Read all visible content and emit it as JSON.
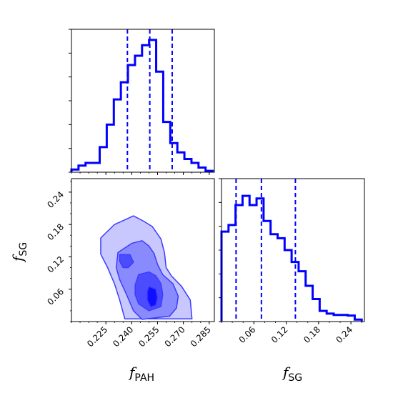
{
  "colors": {
    "main": "#0000ff",
    "contour_fill_levels": [
      "#c8c8ff",
      "#8a8aff",
      "#4c4cff",
      "#0f0fff"
    ],
    "contour_line": "#3b3bff",
    "axes": "#000000",
    "background": "#ffffff"
  },
  "chart_data": [
    {
      "panel": "fPAH-marginal",
      "type": "histogram",
      "xlim": [
        0.205,
        0.288
      ],
      "bins": {
        "start": 0.205,
        "width": 0.0041,
        "counts": [
          0.02,
          0.05,
          0.07,
          0.07,
          0.19,
          0.36,
          0.55,
          0.68,
          0.81,
          0.88,
          0.96,
          1.0,
          0.76,
          0.38,
          0.22,
          0.15,
          0.1,
          0.07,
          0.035,
          0.01
        ]
      },
      "ylim": [
        0,
        1.08
      ],
      "quantile_lines": [
        0.2375,
        0.2505,
        0.2635
      ],
      "yticks_labels": false
    },
    {
      "panel": "fSG-marginal",
      "type": "histogram",
      "xlim": [
        0.0,
        0.265
      ],
      "bins": {
        "start": 0.0,
        "width": 0.013,
        "counts": [
          0.68,
          0.73,
          0.88,
          0.95,
          0.88,
          0.93,
          0.76,
          0.66,
          0.63,
          0.54,
          0.45,
          0.38,
          0.27,
          0.17,
          0.08,
          0.06,
          0.05,
          0.05,
          0.045,
          0.015
        ]
      },
      "ylim": [
        0,
        1.08
      ],
      "quantile_lines": [
        0.027,
        0.074,
        0.137
      ],
      "yticks_labels": false
    },
    {
      "panel": "fPAH-vs-fSG",
      "type": "contour",
      "xlim": [
        0.205,
        0.288
      ],
      "ylim": [
        0.0,
        0.265
      ],
      "levels": [
        [
          [
            0.237,
            0.19
          ],
          [
            0.241,
            0.196
          ],
          [
            0.247,
            0.186
          ],
          [
            0.252,
            0.176
          ],
          [
            0.257,
            0.153
          ],
          [
            0.259,
            0.128
          ],
          [
            0.26,
            0.1
          ],
          [
            0.263,
            0.085
          ],
          [
            0.269,
            0.065
          ],
          [
            0.274,
            0.04
          ],
          [
            0.275,
            0.005
          ],
          [
            0.236,
            0.005
          ],
          [
            0.233,
            0.04
          ],
          [
            0.23,
            0.07
          ],
          [
            0.226,
            0.1
          ],
          [
            0.222,
            0.125
          ],
          [
            0.222,
            0.155
          ],
          [
            0.23,
            0.18
          ]
        ],
        [
          [
            0.24,
            0.145
          ],
          [
            0.246,
            0.15
          ],
          [
            0.25,
            0.14
          ],
          [
            0.253,
            0.126
          ],
          [
            0.255,
            0.106
          ],
          [
            0.258,
            0.087
          ],
          [
            0.264,
            0.07
          ],
          [
            0.267,
            0.047
          ],
          [
            0.266,
            0.025
          ],
          [
            0.262,
            0.01
          ],
          [
            0.246,
            0.004
          ],
          [
            0.241,
            0.02
          ],
          [
            0.237,
            0.05
          ],
          [
            0.233,
            0.078
          ],
          [
            0.231,
            0.1
          ],
          [
            0.232,
            0.128
          ]
        ],
        [
          [
            0.244,
            0.087
          ],
          [
            0.25,
            0.092
          ],
          [
            0.254,
            0.085
          ],
          [
            0.257,
            0.07
          ],
          [
            0.258,
            0.05
          ],
          [
            0.257,
            0.028
          ],
          [
            0.25,
            0.02
          ],
          [
            0.244,
            0.033
          ],
          [
            0.242,
            0.05
          ],
          [
            0.242,
            0.068
          ]
        ],
        [
          [
            0.25,
            0.065
          ],
          [
            0.254,
            0.06
          ],
          [
            0.255,
            0.045
          ],
          [
            0.254,
            0.03
          ],
          [
            0.251,
            0.027
          ],
          [
            0.249,
            0.04
          ],
          [
            0.249,
            0.055
          ]
        ]
      ],
      "extra_blob": [
        [
          0.233,
          0.124
        ],
        [
          0.239,
          0.124
        ],
        [
          0.241,
          0.11
        ],
        [
          0.238,
          0.1
        ],
        [
          0.235,
          0.1
        ],
        [
          0.233,
          0.112
        ]
      ]
    }
  ],
  "axes": {
    "fpah": {
      "ticks": [
        0.225,
        0.24,
        0.255,
        0.27,
        0.285
      ],
      "tick_labels": [
        "0.225",
        "0.240",
        "0.255",
        "0.270",
        "0.285"
      ],
      "title_main": "f",
      "title_sub": "PAH"
    },
    "fsg_x": {
      "ticks": [
        0.06,
        0.12,
        0.18,
        0.24
      ],
      "tick_labels": [
        "0.06",
        "0.12",
        "0.18",
        "0.24"
      ],
      "title_main": "f",
      "title_sub": "SG"
    },
    "fsg_y": {
      "ticks": [
        0.06,
        0.12,
        0.18,
        0.24
      ],
      "tick_labels": [
        "0.06",
        "0.12",
        "0.18",
        "0.24"
      ],
      "title_main": "f",
      "title_sub": "SG"
    }
  }
}
